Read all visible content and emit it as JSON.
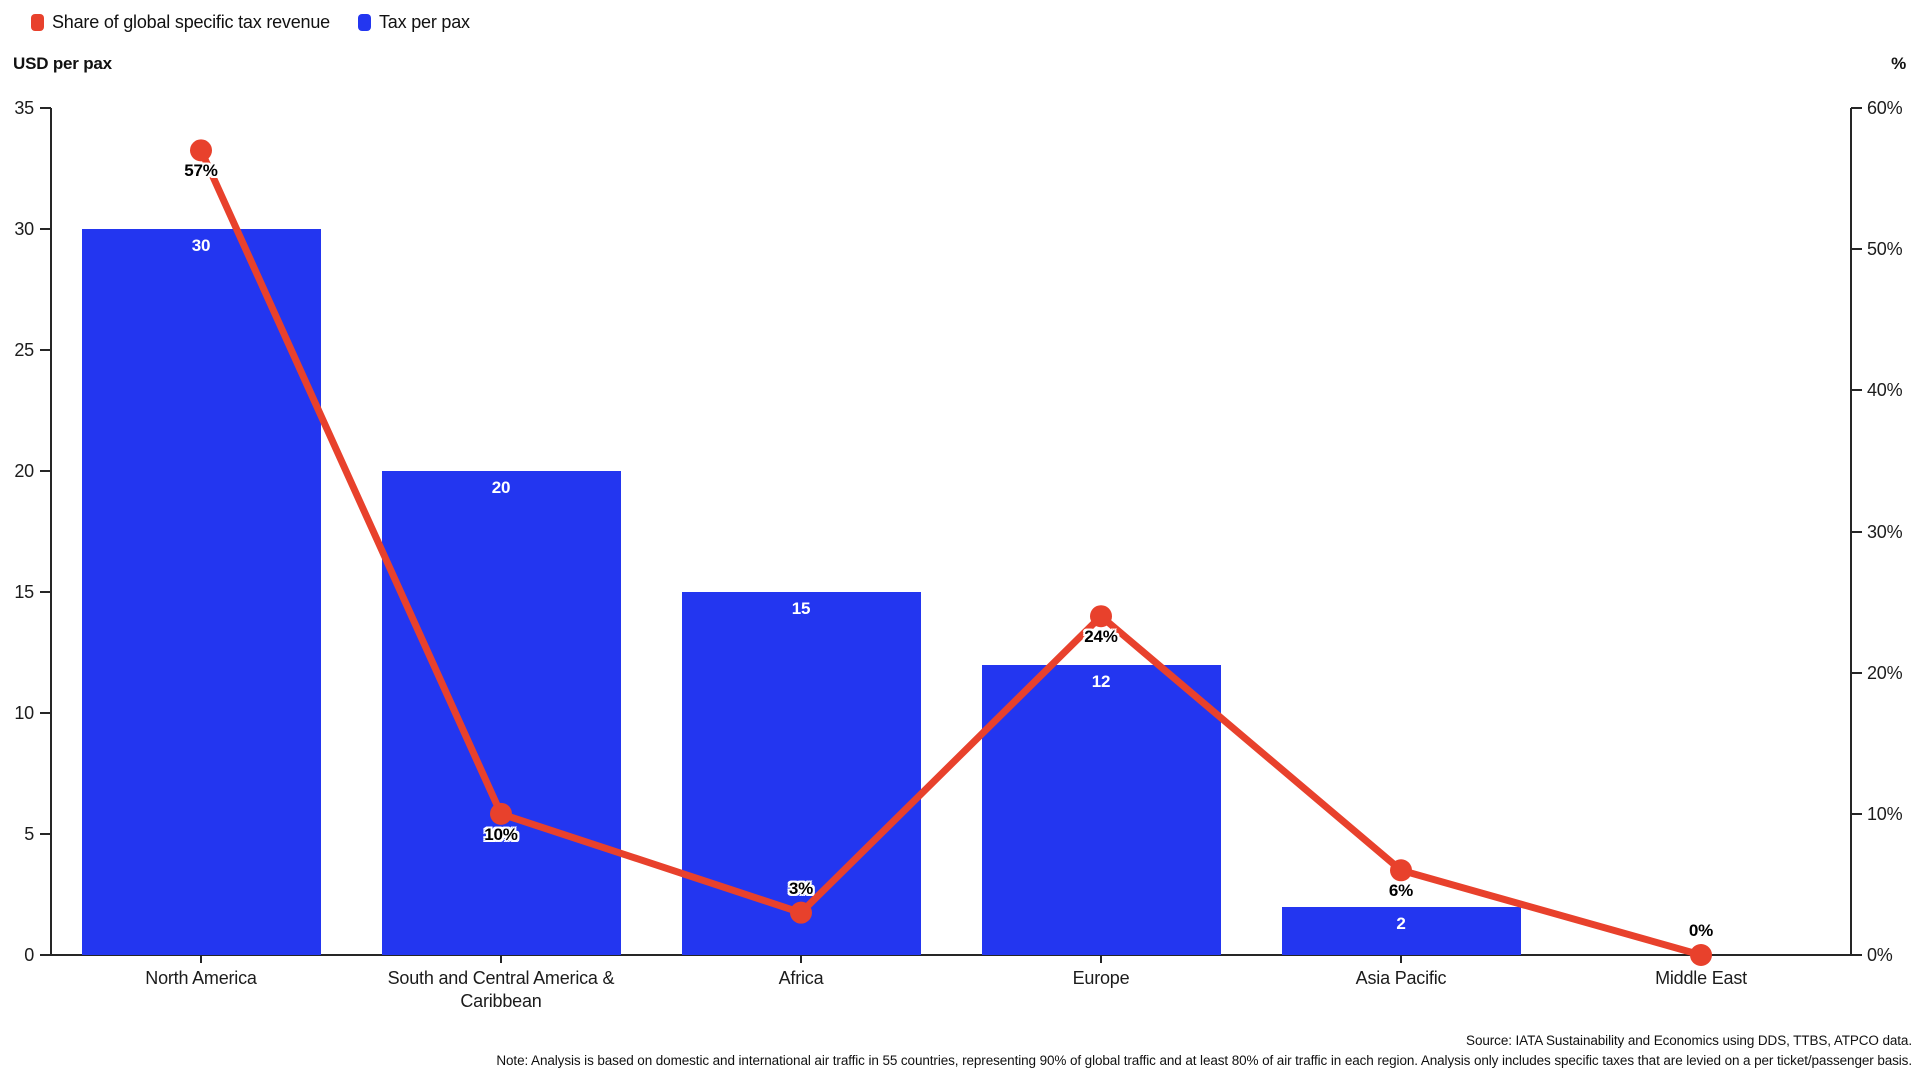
{
  "legend": {
    "items": [
      {
        "name": "share-of-global-specific-tax-revenue",
        "label": "Share of global specific tax revenue",
        "color": "#e8412c"
      },
      {
        "name": "tax-per-pax",
        "label": "Tax per pax",
        "color": "#2336f0"
      }
    ]
  },
  "left_axis": {
    "title": "USD per pax",
    "ticks": [
      0,
      5,
      10,
      15,
      20,
      25,
      30,
      35
    ]
  },
  "right_axis": {
    "title": "%",
    "ticks": [
      "0%",
      "10%",
      "20%",
      "30%",
      "40%",
      "50%",
      "60%"
    ]
  },
  "footer": {
    "source": "Source: IATA Sustainability and Economics using DDS, TTBS, ATPCO data.",
    "note": "Note: Analysis is based on domestic and international air traffic in 55 countries, representing 90% of global traffic and at least 80% of air traffic in each region. Analysis only includes specific taxes that are levied on a per ticket/passenger basis."
  },
  "chart_data": {
    "type": "bar",
    "subtype": "bar-and-line-combo",
    "categories": [
      "North America",
      "South and Central America & Caribbean",
      "Africa",
      "Europe",
      "Asia Pacific",
      "Middle East"
    ],
    "series": [
      {
        "name": "Tax per pax",
        "type": "bar",
        "axis": "left",
        "color": "#2336f0",
        "values": [
          30,
          20,
          15,
          12,
          2,
          0
        ],
        "labels": [
          "30",
          "20",
          "15",
          "12",
          "2",
          ""
        ]
      },
      {
        "name": "Share of global specific tax revenue",
        "type": "line",
        "axis": "right",
        "color": "#e8412c",
        "values": [
          57,
          10,
          3,
          24,
          6,
          0
        ],
        "labels": [
          "57%",
          "10%",
          "3%",
          "24%",
          "6%",
          "0%"
        ],
        "label_positions": [
          "below",
          "below",
          "above",
          "below",
          "below",
          "above"
        ]
      }
    ],
    "left_ylabel": "USD per pax",
    "right_ylabel": "%",
    "left_ylim": [
      0,
      35
    ],
    "right_ylim": [
      0,
      60
    ],
    "grid": false,
    "legend_position": "top-left"
  }
}
